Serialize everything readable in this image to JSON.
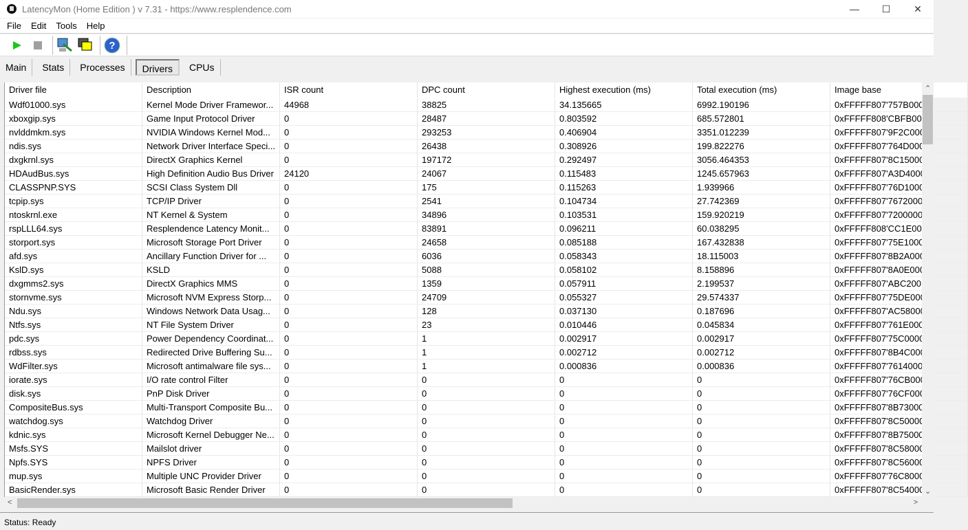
{
  "window": {
    "title": "LatencyMon  (Home Edition )  v 7.31 - https://www.resplendence.com",
    "minimize": "—",
    "maximize": "☐",
    "close": "✕"
  },
  "menu": [
    "File",
    "Edit",
    "Tools",
    "Help"
  ],
  "toolbar": {
    "icons": [
      "play-icon",
      "stop-icon",
      "driver-tool-icon",
      "window-icon",
      "help-icon"
    ],
    "help_glyph": "?"
  },
  "tabs": [
    {
      "label": "Main"
    },
    {
      "label": "Stats"
    },
    {
      "label": "Processes"
    },
    {
      "label": "Drivers",
      "active": true
    },
    {
      "label": "CPUs"
    }
  ],
  "table": {
    "columns": [
      "Driver file",
      "Description",
      "ISR count",
      "DPC count",
      "Highest execution (ms)",
      "Total execution (ms)",
      "Image base"
    ],
    "rows": [
      [
        "Wdf01000.sys",
        "Kernel Mode Driver Framewor...",
        "44968",
        "38825",
        "34.135665",
        "6992.190196",
        "0xFFFFF807'757B000"
      ],
      [
        "xboxgip.sys",
        "Game Input Protocol Driver",
        "0",
        "28487",
        "0.803592",
        "685.572801",
        "0xFFFFF808'CBFB00"
      ],
      [
        "nvlddmkm.sys",
        "NVIDIA Windows Kernel Mod...",
        "0",
        "293253",
        "0.406904",
        "3351.012239",
        "0xFFFFF807'9F2C000"
      ],
      [
        "ndis.sys",
        "Network Driver Interface Speci...",
        "0",
        "26438",
        "0.308926",
        "199.822276",
        "0xFFFFF807'764D000"
      ],
      [
        "dxgkrnl.sys",
        "DirectX Graphics Kernel",
        "0",
        "197172",
        "0.292497",
        "3056.464353",
        "0xFFFFF807'8C15000"
      ],
      [
        "HDAudBus.sys",
        "High Definition Audio Bus Driver",
        "24120",
        "24067",
        "0.115483",
        "1245.657963",
        "0xFFFFF807'A3D4000"
      ],
      [
        "CLASSPNP.SYS",
        "SCSI Class System Dll",
        "0",
        "175",
        "0.115263",
        "1.939966",
        "0xFFFFF807'76D1000"
      ],
      [
        "tcpip.sys",
        "TCP/IP Driver",
        "0",
        "2541",
        "0.104734",
        "27.742369",
        "0xFFFFF807'7672000"
      ],
      [
        "ntoskrnl.exe",
        "NT Kernel & System",
        "0",
        "34896",
        "0.103531",
        "159.920219",
        "0xFFFFF807'7200000"
      ],
      [
        "rspLLL64.sys",
        "Resplendence Latency Monit...",
        "0",
        "83891",
        "0.096211",
        "60.038295",
        "0xFFFFF808'CC1E00"
      ],
      [
        "storport.sys",
        "Microsoft Storage Port Driver",
        "0",
        "24658",
        "0.085188",
        "167.432838",
        "0xFFFFF807'75E1000"
      ],
      [
        "afd.sys",
        "Ancillary Function Driver for ...",
        "0",
        "6036",
        "0.058343",
        "18.115003",
        "0xFFFFF807'8B2A000"
      ],
      [
        "KslD.sys",
        "KSLD",
        "0",
        "5088",
        "0.058102",
        "8.158896",
        "0xFFFFF807'8A0E000"
      ],
      [
        "dxgmms2.sys",
        "DirectX Graphics MMS",
        "0",
        "1359",
        "0.057911",
        "2.199537",
        "0xFFFFF807'ABC200"
      ],
      [
        "stornvme.sys",
        "Microsoft NVM Express Storp...",
        "0",
        "24709",
        "0.055327",
        "29.574337",
        "0xFFFFF807'75DE000"
      ],
      [
        "Ndu.sys",
        "Windows Network Data Usag...",
        "0",
        "128",
        "0.037130",
        "0.187696",
        "0xFFFFF807'AC58000"
      ],
      [
        "Ntfs.sys",
        "NT File System Driver",
        "0",
        "23",
        "0.010446",
        "0.045834",
        "0xFFFFF807'761E000"
      ],
      [
        "pdc.sys",
        "Power Dependency Coordinat...",
        "0",
        "1",
        "0.002917",
        "0.002917",
        "0xFFFFF807'75C0000"
      ],
      [
        "rdbss.sys",
        "Redirected Drive Buffering Su...",
        "0",
        "1",
        "0.002712",
        "0.002712",
        "0xFFFFF807'8B4C000"
      ],
      [
        "WdFilter.sys",
        "Microsoft antimalware file sys...",
        "0",
        "1",
        "0.000836",
        "0.000836",
        "0xFFFFF807'7614000"
      ],
      [
        "iorate.sys",
        "I/O rate control Filter",
        "0",
        "0",
        "0",
        "0",
        "0xFFFFF807'76CB000"
      ],
      [
        "disk.sys",
        "PnP Disk Driver",
        "0",
        "0",
        "0",
        "0",
        "0xFFFFF807'76CF000"
      ],
      [
        "CompositeBus.sys",
        "Multi-Transport Composite Bu...",
        "0",
        "0",
        "0",
        "0",
        "0xFFFFF807'8B73000"
      ],
      [
        "watchdog.sys",
        "Watchdog Driver",
        "0",
        "0",
        "0",
        "0",
        "0xFFFFF807'8C50000"
      ],
      [
        "kdnic.sys",
        "Microsoft Kernel Debugger Ne...",
        "0",
        "0",
        "0",
        "0",
        "0xFFFFF807'8B75000"
      ],
      [
        "Msfs.SYS",
        "Mailslot driver",
        "0",
        "0",
        "0",
        "0",
        "0xFFFFF807'8C58000"
      ],
      [
        "Npfs.SYS",
        "NPFS Driver",
        "0",
        "0",
        "0",
        "0",
        "0xFFFFF807'8C56000"
      ],
      [
        "mup.sys",
        "Multiple UNC Provider Driver",
        "0",
        "0",
        "0",
        "0",
        "0xFFFFF807'76C8000"
      ],
      [
        "BasicRender.sys",
        "Microsoft Basic Render Driver",
        "0",
        "0",
        "0",
        "0",
        "0xFFFFF807'8C54000"
      ]
    ]
  },
  "scroll": {
    "up": "⌃",
    "down": "⌄",
    "left": "<",
    "right": ">"
  },
  "status": "Status: Ready"
}
